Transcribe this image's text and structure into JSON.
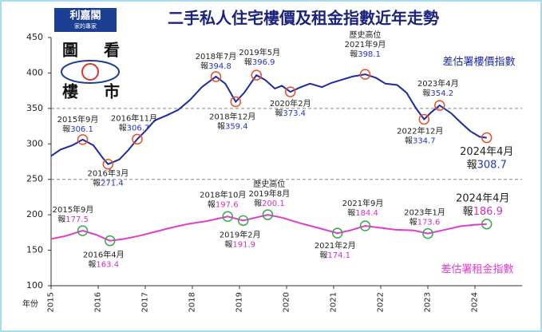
{
  "chart_data": {
    "type": "line",
    "title": "二手私人住宅樓價及租金指數近年走勢",
    "logo": {
      "name": "利嘉閣",
      "tagline": "家的專家",
      "slogan": [
        "圖",
        "看",
        "樓",
        "市"
      ]
    },
    "x_label": "年份",
    "xlim": [
      2015,
      2025
    ],
    "xticks": [
      2015,
      2016,
      2017,
      2018,
      2019,
      2020,
      2021,
      2022,
      2023,
      2024
    ],
    "ylim": [
      100,
      450
    ],
    "yticks": [
      100,
      150,
      200,
      250,
      300,
      350,
      400,
      450
    ],
    "reference_lines": [
      250,
      350
    ],
    "value_prefix": "報",
    "series": [
      {
        "name": "差估署樓價指數",
        "color": "#1c2aa8",
        "marker_color": "#e8502a",
        "label_color": "#2233cc",
        "x": [
          2015.0,
          2015.2,
          2015.45,
          2015.67,
          2015.9,
          2016.1,
          2016.21,
          2016.45,
          2016.65,
          2016.83,
          2017.0,
          2017.2,
          2017.45,
          2017.7,
          2017.95,
          2018.2,
          2018.5,
          2018.7,
          2018.92,
          2019.1,
          2019.36,
          2019.55,
          2019.75,
          2019.9,
          2020.08,
          2020.3,
          2020.5,
          2020.75,
          2020.95,
          2021.15,
          2021.4,
          2021.67,
          2021.9,
          2022.1,
          2022.35,
          2022.55,
          2022.75,
          2022.92,
          2023.08,
          2023.25,
          2023.5,
          2023.7,
          2023.9,
          2024.1,
          2024.25
        ],
        "values": [
          283,
          292,
          298,
          306.1,
          298,
          280,
          271.4,
          278,
          292,
          306.7,
          318,
          333,
          340,
          348,
          362,
          380,
          394.8,
          385,
          359.4,
          372,
          396.9,
          390,
          378,
          382,
          373.4,
          380,
          385,
          380,
          386,
          390,
          395,
          398.1,
          393,
          385,
          383,
          372,
          350,
          334.7,
          345,
          354.2,
          343,
          330,
          318,
          310,
          308.7
        ],
        "point_labels": [
          null,
          null,
          null,
          "2015年9月",
          null,
          null,
          "2016年3月",
          null,
          null,
          "2016年11月",
          null,
          null,
          null,
          null,
          null,
          null,
          "2018年7月",
          null,
          "2018年12月",
          null,
          "2019年5月",
          null,
          null,
          null,
          "2020年2月",
          null,
          null,
          null,
          null,
          null,
          null,
          "2021年9月",
          null,
          null,
          null,
          null,
          null,
          "2022年12月",
          null,
          "2023年4月",
          null,
          null,
          null,
          null,
          "2024年4月"
        ],
        "highlights": [
          null,
          null,
          null,
          null,
          null,
          null,
          null,
          null,
          null,
          null,
          null,
          null,
          null,
          null,
          null,
          null,
          null,
          null,
          null,
          null,
          null,
          null,
          null,
          null,
          null,
          null,
          null,
          null,
          null,
          null,
          null,
          "歷史高位",
          null,
          null,
          null,
          null,
          null,
          null,
          null,
          null,
          null,
          null,
          null,
          null,
          null
        ]
      },
      {
        "name": "差估署租金指數",
        "color": "#e03ccf",
        "marker_color": "#3aa84a",
        "label_color": "#d030c0",
        "x": [
          2015.0,
          2015.3,
          2015.67,
          2015.95,
          2016.25,
          2016.55,
          2016.85,
          2017.15,
          2017.5,
          2017.9,
          2018.3,
          2018.75,
          2019.08,
          2019.6,
          2019.9,
          2020.3,
          2020.7,
          2021.08,
          2021.35,
          2021.67,
          2021.95,
          2022.3,
          2022.7,
          2023.0,
          2023.3,
          2023.7,
          2024.0,
          2024.25
        ],
        "values": [
          166,
          170,
          177.5,
          172,
          163.4,
          166,
          170,
          175,
          181,
          187,
          191,
          197.6,
          191.9,
          200.1,
          196,
          188,
          181,
          174.1,
          178,
          184.4,
          182,
          179,
          178,
          173.6,
          178,
          184,
          186,
          186.9
        ],
        "point_labels": [
          null,
          null,
          "2015年9月",
          null,
          "2016年4月",
          null,
          null,
          null,
          null,
          null,
          null,
          "2018年10月",
          "2019年2月",
          "2019年8月",
          null,
          null,
          null,
          "2021年2月",
          null,
          "2021年9月",
          null,
          null,
          null,
          "2023年1月",
          null,
          null,
          null,
          "2024年4月"
        ],
        "highlights": [
          null,
          null,
          null,
          null,
          null,
          null,
          null,
          null,
          null,
          null,
          null,
          null,
          null,
          "歷史高位",
          null,
          null,
          null,
          null,
          null,
          null,
          null,
          null,
          null,
          null,
          null,
          null,
          null,
          null
        ]
      }
    ]
  }
}
